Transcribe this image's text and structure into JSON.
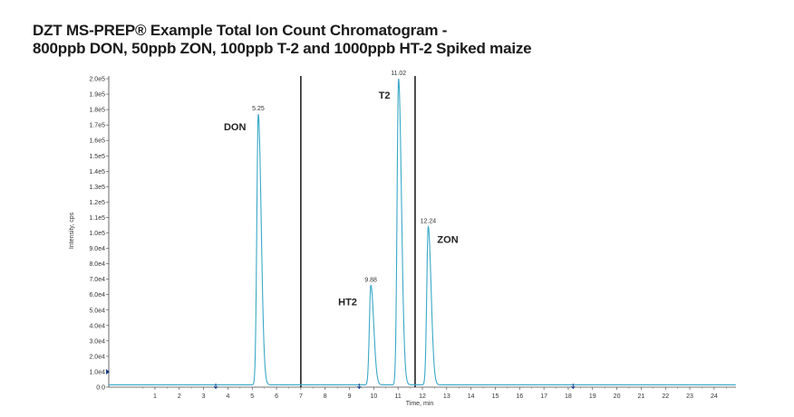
{
  "title_line1": "DZT MS-PREP® Example Total Ion Count Chromatogram -",
  "title_line2": "800ppb DON, 50ppb ZON, 100ppb T-2  and 1000ppb HT-2 Spiked maize",
  "chart_data": {
    "type": "line",
    "xlabel": "Time, min",
    "ylabel": "Intensity, cps",
    "xlim": [
      -0.9,
      24.9
    ],
    "ylim": [
      0,
      200000
    ],
    "x_ticks": [
      "1",
      "2",
      "3",
      "4",
      "5",
      "6",
      "7",
      "8",
      "9",
      "10",
      "11",
      "12",
      "13",
      "14",
      "15",
      "16",
      "17",
      "18",
      "19",
      "20",
      "21",
      "22",
      "23",
      "24"
    ],
    "y_ticks": [
      "0.0",
      "1.0e4",
      "2.0e4",
      "3.0e4",
      "4.0e4",
      "5.0e4",
      "6.0e4",
      "7.0e4",
      "8.0e4",
      "9.0e4",
      "1.0e5",
      "1.1e5",
      "1.2e5",
      "1.3e5",
      "1.4e5",
      "1.5e5",
      "1.6e5",
      "1.7e5",
      "1.8e5",
      "1.9e5",
      "2.0e5"
    ],
    "peaks": [
      {
        "name": "DON",
        "rt": 5.25,
        "rt_label": "5.25",
        "height": 177000
      },
      {
        "name": "HT2",
        "rt": 9.88,
        "rt_label": "9.88",
        "height": 66000
      },
      {
        "name": "T2",
        "rt": 11.02,
        "rt_label": "11.02",
        "height": 200000
      },
      {
        "name": "ZON",
        "rt": 12.24,
        "rt_label": "12.24",
        "height": 104000
      }
    ],
    "baseline": 1500,
    "segment_dividers": [
      7.0,
      11.7
    ],
    "markers": [
      3.5,
      9.4,
      18.2
    ],
    "trace_color": "#3aa8c8"
  }
}
